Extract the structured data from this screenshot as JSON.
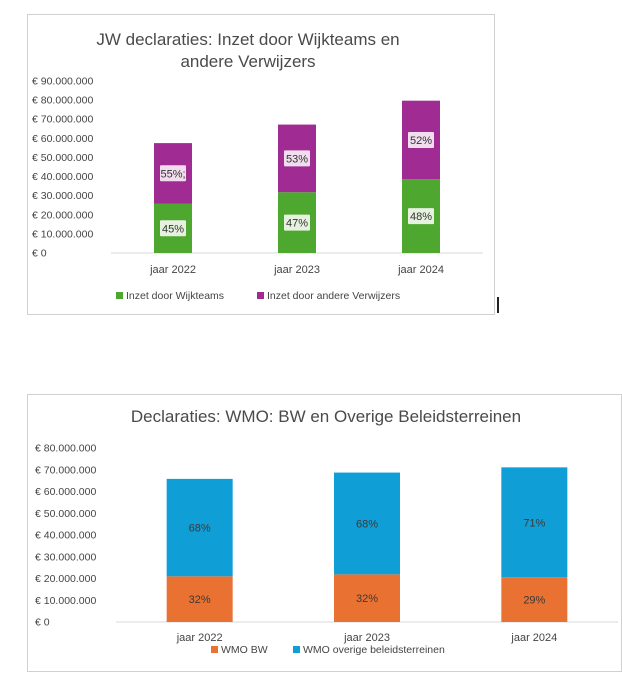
{
  "chart_data": [
    {
      "type": "bar",
      "stacked": true,
      "title_lines": [
        "JW declaraties: Inzet door Wijkteams en",
        "andere Verwijzers"
      ],
      "categories": [
        "jaar 2022",
        "jaar 2023",
        "jaar 2024"
      ],
      "y_ticks": [
        "€ 0",
        "€ 10.000.000",
        "€ 20.000.000",
        "€ 30.000.000",
        "€ 40.000.000",
        "€ 50.000.000",
        "€ 60.000.000",
        "€ 70.000.000",
        "€ 80.000.000",
        "€ 90.000.000"
      ],
      "ylim": [
        0,
        90000000
      ],
      "legend_position": "bottom",
      "series": [
        {
          "name": "Inzet door Wijkteams",
          "color": "#4ea72e",
          "values": [
            25900000,
            31800000,
            38600000
          ],
          "labels": [
            "45%",
            "47%",
            "48%"
          ]
        },
        {
          "name": "Inzet door andere Verwijzers",
          "color": "#a02b93",
          "values": [
            31600000,
            35400000,
            41100000
          ],
          "labels": [
            "55%;",
            "53%",
            "52%"
          ]
        }
      ]
    },
    {
      "type": "bar",
      "stacked": true,
      "title_lines": [
        "Declaraties: WMO: BW en Overige Beleidsterreinen"
      ],
      "categories": [
        "jaar 2022",
        "jaar 2023",
        "jaar 2024"
      ],
      "y_ticks": [
        "€ 0",
        "€ 10.000.000",
        "€ 20.000.000",
        "€ 30.000.000",
        "€ 40.000.000",
        "€ 50.000.000",
        "€ 60.000.000",
        "€ 70.000.000",
        "€ 80.000.000"
      ],
      "ylim": [
        0,
        80000000
      ],
      "legend_position": "bottom",
      "series": [
        {
          "name": "WMO BW",
          "color": "#e97132",
          "values": [
            21000000,
            21900000,
            20600000
          ],
          "labels": [
            "32%",
            "32%",
            "29%"
          ]
        },
        {
          "name": "WMO overige beleidsterreinen",
          "color": "#0f9ed5",
          "values": [
            44800000,
            46800000,
            50500000
          ],
          "labels": [
            "68%",
            "68%",
            "71%"
          ]
        }
      ]
    }
  ]
}
